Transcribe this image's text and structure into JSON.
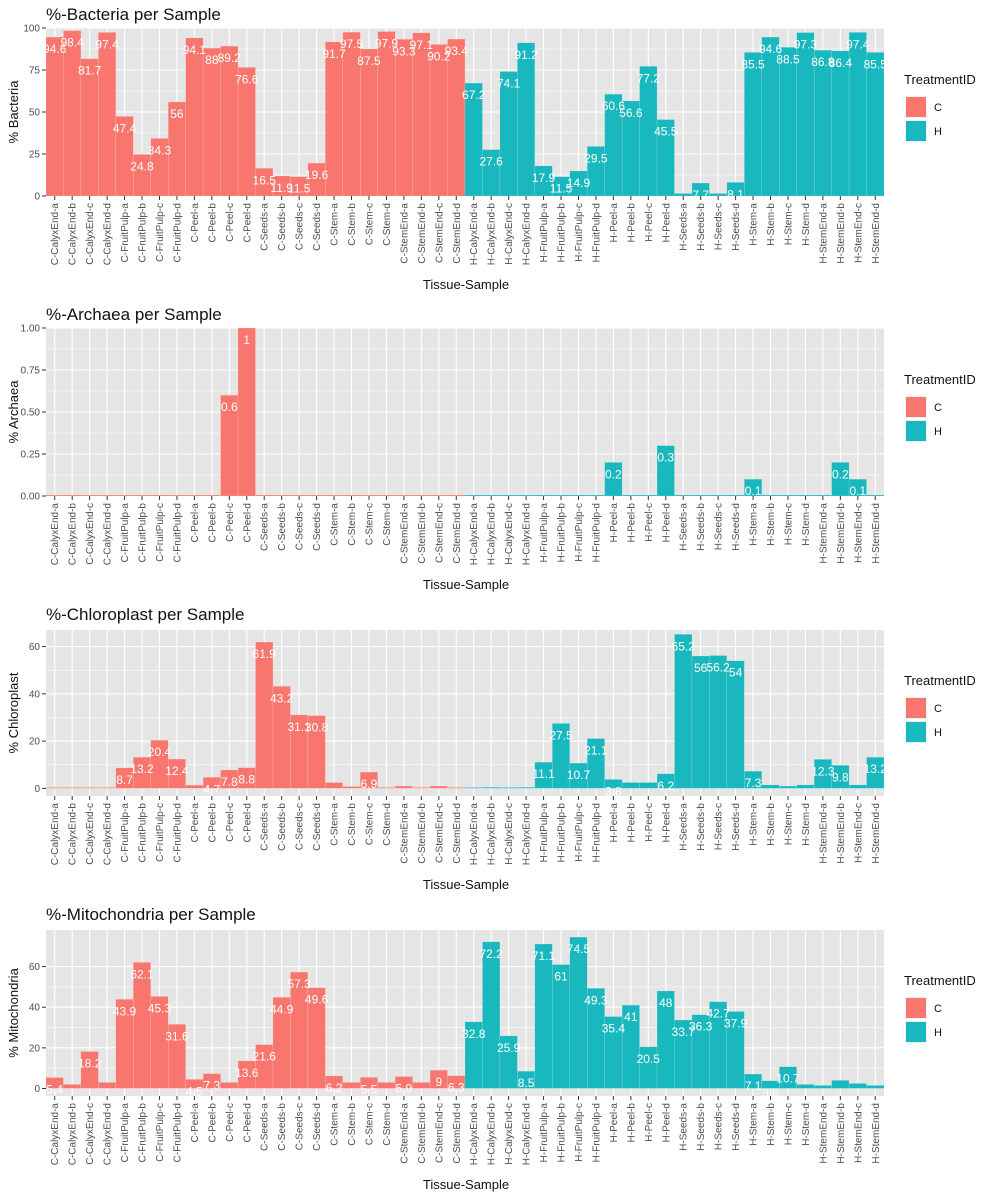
{
  "chart_data": [
    {
      "type": "bar",
      "title": "%-Bacteria per Sample",
      "xlabel": "Tissue-Sample",
      "ylabel": "% Bacteria",
      "ylim": [
        0,
        100
      ],
      "yticks": [
        "0",
        "25",
        "50",
        "75",
        "100"
      ],
      "ytick_values": [
        0,
        25,
        50,
        75,
        100
      ],
      "values": [
        94.6,
        98.4,
        81.7,
        97.4,
        47.4,
        24.8,
        34.3,
        56,
        94.1,
        88,
        89.2,
        76.6,
        16.5,
        11.9,
        11.5,
        19.6,
        91.7,
        97.5,
        87.5,
        97.9,
        93.3,
        97.1,
        90.2,
        93.4,
        67.2,
        27.6,
        74.1,
        91.2,
        17.9,
        11.5,
        14.9,
        29.5,
        60.6,
        56.6,
        77.2,
        45.5,
        1.5,
        7.7,
        1.5,
        8.1,
        85.5,
        94.6,
        88.5,
        97.3,
        86.8,
        86.4,
        97.4,
        85.5
      ],
      "labels": [
        "94.6",
        "98.4",
        "81.7",
        "97.4",
        "47.4",
        "24.8",
        "34.3",
        "56",
        "94.1",
        "88",
        "89.2",
        "76.6",
        "16.5",
        "11.9",
        "11.5",
        "19.6",
        "91.7",
        "97.5",
        "87.5",
        "97.9",
        "93.3",
        "97.1",
        "90.2",
        "93.4",
        "67.2",
        "27.6",
        "74.1",
        "91.2",
        "17.9",
        "11.5",
        "14.9",
        "29.5",
        "60.6",
        "56.6",
        "77.2",
        "45.5",
        "",
        "7.7",
        "",
        "8.1",
        "85.5",
        "94.6",
        "88.5",
        "97.3",
        "86.8",
        "86.4",
        "97.4",
        "85.5"
      ],
      "grid": true,
      "legend": "right"
    },
    {
      "type": "bar",
      "title": "%-Archaea per Sample",
      "xlabel": "Tissue-Sample",
      "ylabel": "% Archaea",
      "ylim": [
        0,
        1
      ],
      "yticks": [
        "0.00",
        "0.25",
        "0.50",
        "0.75",
        "1.00"
      ],
      "ytick_values": [
        0,
        0.25,
        0.5,
        0.75,
        1.0
      ],
      "values": [
        0,
        0,
        0,
        0,
        0,
        0,
        0,
        0,
        0,
        0,
        0.6,
        1,
        0,
        0,
        0,
        0,
        0,
        0,
        0,
        0,
        0,
        0,
        0,
        0,
        0,
        0,
        0,
        0,
        0,
        0,
        0,
        0,
        0.2,
        0,
        0,
        0.3,
        0,
        0,
        0,
        0,
        0.1,
        0,
        0,
        0,
        0,
        0.2,
        0.1,
        0
      ],
      "labels": [
        "",
        "",
        "",
        "",
        "",
        "",
        "",
        "",
        "",
        "",
        "0.6",
        "1",
        "",
        "",
        "",
        "",
        "",
        "",
        "",
        "",
        "",
        "",
        "",
        "",
        "",
        "",
        "",
        "",
        "",
        "",
        "",
        "",
        "0.2",
        "",
        "",
        "0.3",
        "",
        "",
        "",
        "",
        "0.1",
        "",
        "",
        "",
        "",
        "0.2",
        "0.1",
        ""
      ],
      "grid": true,
      "legend": "right"
    },
    {
      "type": "bar",
      "title": "%-Chloroplast per Sample",
      "xlabel": "Tissue-Sample",
      "ylabel": "% Chloroplast",
      "ylim": [
        -3.2,
        67
      ],
      "yticks": [
        "0",
        "20",
        "40",
        "60"
      ],
      "ytick_values": [
        0,
        20,
        40,
        60
      ],
      "values": [
        0,
        0,
        0,
        0,
        8.7,
        13.2,
        20.4,
        12.4,
        1.4,
        4.7,
        7.8,
        8.8,
        61.9,
        43.2,
        31.1,
        30.8,
        2.5,
        0.8,
        6.9,
        0.3,
        1,
        0.3,
        1,
        0.3,
        0,
        0.5,
        0.3,
        0.5,
        11.1,
        27.5,
        10.7,
        21.1,
        3.8,
        2.5,
        2.5,
        6.2,
        65.2,
        56,
        56.2,
        54,
        7.3,
        1.5,
        1,
        1.5,
        12.3,
        9.8,
        1.5,
        13.2
      ],
      "labels": [
        "",
        "",
        "",
        "",
        "8.7",
        "13.2",
        "20.4",
        "12.4",
        "",
        "4.7",
        "7.8",
        "8.8",
        "61.9",
        "43.2",
        "31.1",
        "30.8",
        "",
        "",
        "6.9",
        "",
        "",
        "",
        "",
        "",
        "",
        "",
        "",
        "",
        "11.1",
        "27.5",
        "10.7",
        "21.1",
        "3.8",
        "",
        "",
        "6.2",
        "65.2",
        "56",
        "56.2",
        "54",
        "7.3",
        "",
        "",
        "",
        "12.3",
        "9.8",
        "",
        "13.2"
      ],
      "grid": true,
      "legend": "right"
    },
    {
      "type": "bar",
      "title": "%-Mitochondria per Sample",
      "xlabel": "Tissue-Sample",
      "ylabel": "% Mitochondria",
      "ylim": [
        -3.7,
        78
      ],
      "yticks": [
        "0",
        "20",
        "40",
        "60"
      ],
      "ytick_values": [
        0,
        20,
        40,
        60
      ],
      "values": [
        5.4,
        2,
        18.2,
        3,
        43.9,
        62.1,
        45.3,
        31.6,
        4.5,
        7.3,
        3,
        13.6,
        21.6,
        44.9,
        57.3,
        49.6,
        6.2,
        3,
        5.5,
        3,
        5.9,
        3,
        9,
        6.3,
        32.8,
        72.2,
        25.9,
        8.5,
        71.1,
        61,
        74.5,
        49.3,
        35.4,
        41,
        20.5,
        48,
        33.7,
        36.3,
        42.7,
        37.9,
        7.1,
        3.8,
        10.7,
        2,
        1.5,
        4,
        2.5,
        1.5
      ],
      "labels": [
        "5.4",
        "",
        "18.2",
        "",
        "43.9",
        "62.1",
        "45.3",
        "31.6",
        "4.5",
        "7.3",
        "",
        "13.6",
        "21.6",
        "44.9",
        "57.3",
        "49.6",
        "6.2",
        "",
        "5.5",
        "",
        "5.9",
        "",
        "9",
        "6.3",
        "32.8",
        "72.2",
        "25.9",
        "8.5",
        "71.1",
        "61",
        "74.5",
        "49.3",
        "35.4",
        "41",
        "20.5",
        "48",
        "33.7",
        "36.3",
        "42.7",
        "37.9",
        "7.1",
        "3.8",
        "10.7",
        "",
        "",
        "",
        "",
        ""
      ],
      "grid": true,
      "legend": "right"
    }
  ],
  "samples": [
    "C-CalyxEnd-a",
    "C-CalyxEnd-b",
    "C-CalyxEnd-c",
    "C-CalyxEnd-d",
    "C-FruitPulp-a",
    "C-FruitPulp-b",
    "C-FruitPulp-c",
    "C-FruitPulp-d",
    "C-Peel-a",
    "C-Peel-b",
    "C-Peel-c",
    "C-Peel-d",
    "C-Seeds-a",
    "C-Seeds-b",
    "C-Seeds-c",
    "C-Seeds-d",
    "C-Stem-a",
    "C-Stem-b",
    "C-Stem-c",
    "C-Stem-d",
    "C-StemEnd-a",
    "C-StemEnd-b",
    "C-StemEnd-c",
    "C-StemEnd-d",
    "H-CalyxEnd-a",
    "H-CalyxEnd-b",
    "H-CalyxEnd-c",
    "H-CalyxEnd-d",
    "H-FruitPulp-a",
    "H-FruitPulp-b",
    "H-FruitPulp-c",
    "H-FruitPulp-d",
    "H-Peel-a",
    "H-Peel-b",
    "H-Peel-c",
    "H-Peel-d",
    "H-Seeds-a",
    "H-Seeds-b",
    "H-Seeds-c",
    "H-Seeds-d",
    "H-Stem-a",
    "H-Stem-b",
    "H-Stem-c",
    "H-Stem-d",
    "H-StemEnd-a",
    "H-StemEnd-b",
    "H-StemEnd-c",
    "H-StemEnd-d"
  ],
  "treatment": [
    "C",
    "C",
    "C",
    "C",
    "C",
    "C",
    "C",
    "C",
    "C",
    "C",
    "C",
    "C",
    "C",
    "C",
    "C",
    "C",
    "C",
    "C",
    "C",
    "C",
    "C",
    "C",
    "C",
    "C",
    "H",
    "H",
    "H",
    "H",
    "H",
    "H",
    "H",
    "H",
    "H",
    "H",
    "H",
    "H",
    "H",
    "H",
    "H",
    "H",
    "H",
    "H",
    "H",
    "H",
    "H",
    "H",
    "H",
    "H"
  ],
  "legend": {
    "title": "TreatmentID",
    "items": [
      {
        "name": "C",
        "color": "#f8766d"
      },
      {
        "name": "H",
        "color": "#19b7be"
      }
    ]
  },
  "colors": {
    "panel_bg": "#e5e5e5",
    "grid": "#ffffff",
    "C": "#f8766d",
    "H": "#19b7be"
  }
}
